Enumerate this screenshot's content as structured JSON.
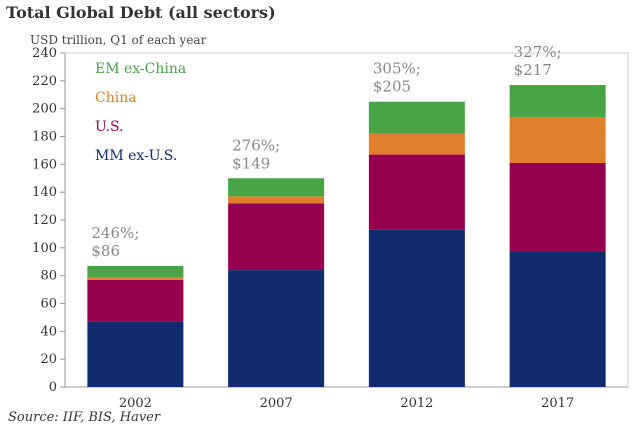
{
  "chart_data": {
    "type": "bar",
    "stacked": true,
    "title": "Total Global Debt (all sectors)",
    "subtitle": "USD trillion, Q1 of each year",
    "source": "Source: IIF, BIS, Haver",
    "categories": [
      "2002",
      "2007",
      "2012",
      "2017"
    ],
    "series": [
      {
        "name": "MM ex-U.S.",
        "color": "#0f2a6e",
        "values": [
          47,
          84,
          113,
          97
        ]
      },
      {
        "name": "U.S.",
        "color": "#96004f",
        "values": [
          30,
          48,
          54,
          64
        ]
      },
      {
        "name": "China",
        "color": "#e07f2b",
        "values": [
          2,
          5,
          15,
          33
        ]
      },
      {
        "name": "EM ex-China",
        "color": "#47a447",
        "values": [
          8,
          13,
          23,
          23
        ]
      }
    ],
    "annotations": [
      {
        "category": "2002",
        "line1": "246%;",
        "line2": "$86"
      },
      {
        "category": "2007",
        "line1": "276%;",
        "line2": "$149"
      },
      {
        "category": "2012",
        "line1": "305%;",
        "line2": "$205"
      },
      {
        "category": "2017",
        "line1": "327%;",
        "line2": "$217"
      }
    ],
    "ylim": [
      0,
      240
    ],
    "yticks": [
      0,
      20,
      40,
      60,
      80,
      100,
      120,
      140,
      160,
      180,
      200,
      220,
      240
    ],
    "legend_placement": "top-left",
    "grid": false
  }
}
